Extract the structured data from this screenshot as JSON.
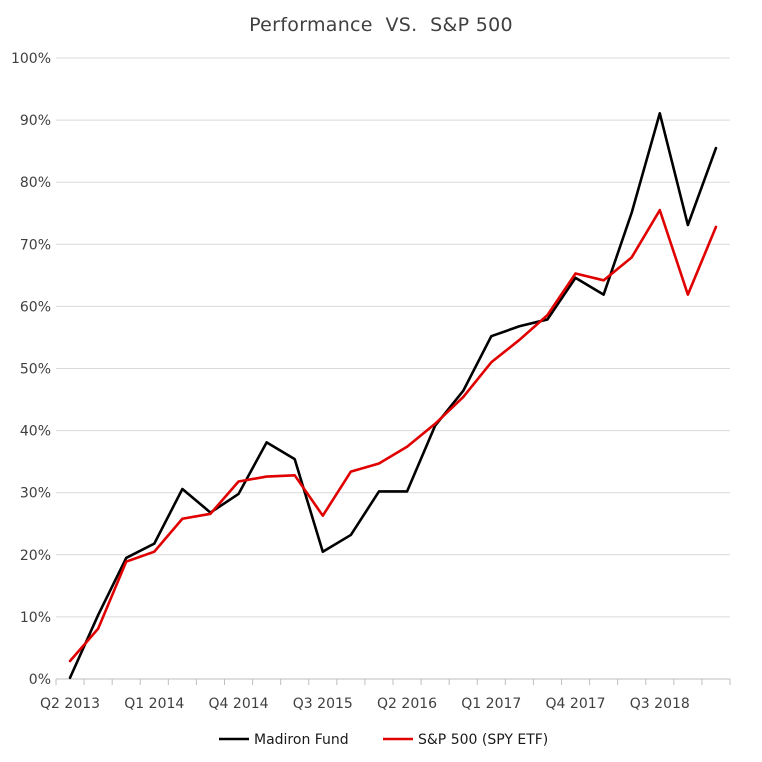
{
  "chart_data": {
    "type": "line",
    "title": "Performance  VS.  S&P 500",
    "xlabel": "",
    "ylabel": "",
    "ylim": [
      0,
      100
    ],
    "y_ticks": [
      "0%",
      "10%",
      "20%",
      "30%",
      "40%",
      "50%",
      "60%",
      "70%",
      "80%",
      "90%",
      "100%"
    ],
    "x": [
      "Q2 2013",
      "Q3 2013",
      "Q4 2013",
      "Q1 2014",
      "Q2 2014",
      "Q3 2014",
      "Q4 2014",
      "Q1 2015",
      "Q2 2015",
      "Q3 2015",
      "Q4 2015",
      "Q1 2016",
      "Q2 2016",
      "Q3 2016",
      "Q4 2016",
      "Q1 2017",
      "Q2 2017",
      "Q3 2017",
      "Q4 2017",
      "Q1 2018",
      "Q2 2018",
      "Q3 2018",
      "Q4 2018",
      "Q1 2019"
    ],
    "x_tick_labels": [
      "Q2 2013",
      "Q1 2014",
      "Q4 2014",
      "Q3 2015",
      "Q2 2016",
      "Q1 2017",
      "Q4 2017",
      "Q3 2018"
    ],
    "series": [
      {
        "name": "Madiron Fund",
        "color": "#000000",
        "values": [
          0.2,
          10.3,
          19.5,
          21.8,
          30.6,
          26.8,
          29.8,
          38.1,
          35.4,
          20.5,
          23.2,
          30.2,
          30.2,
          40.8,
          46.4,
          55.2,
          56.8,
          57.9,
          64.6,
          61.9,
          75.1,
          91.1,
          73.1,
          85.5
        ]
      },
      {
        "name": "S&P 500 (SPY ETF)",
        "color": "#e00000",
        "values": [
          2.9,
          8.1,
          18.9,
          20.5,
          25.8,
          26.6,
          31.8,
          32.6,
          32.8,
          26.3,
          33.4,
          34.7,
          37.4,
          41.1,
          45.4,
          51.0,
          54.6,
          58.6,
          65.3,
          64.2,
          67.9,
          75.5,
          61.9,
          72.8
        ]
      }
    ],
    "legend_position": "bottom",
    "grid": true
  }
}
